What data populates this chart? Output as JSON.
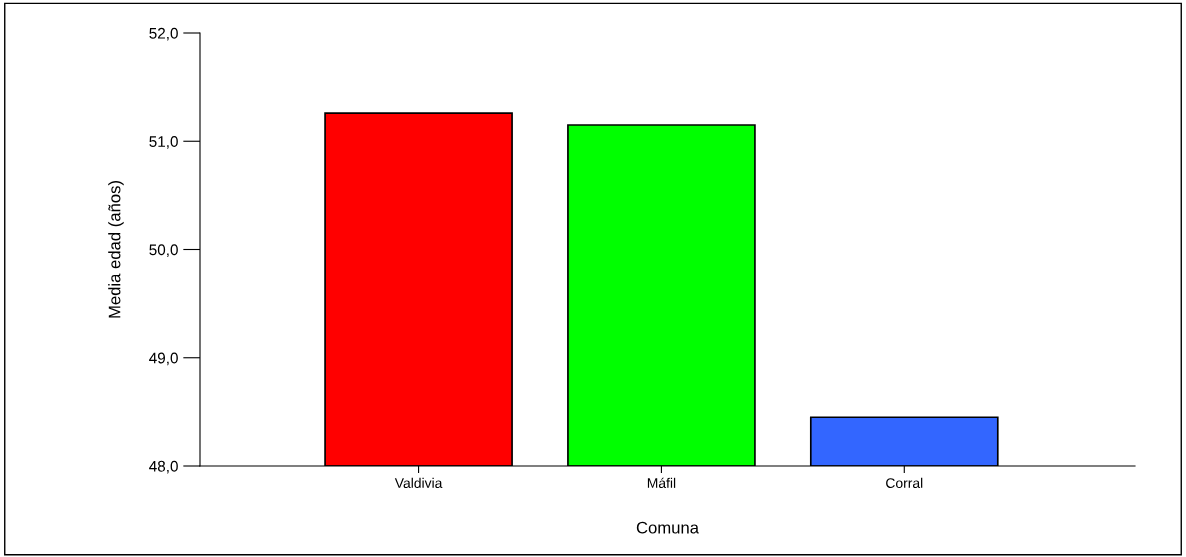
{
  "chart_data": {
    "type": "bar",
    "xlabel": "Comuna",
    "ylabel": "Media edad (años)",
    "categories": [
      "Valdivia",
      "Máfil",
      "Corral"
    ],
    "values": [
      51.26,
      51.15,
      48.45
    ],
    "colors": [
      "#ff0000",
      "#00ff00",
      "#3366ff"
    ],
    "ylim": [
      48,
      52
    ],
    "yticks": [
      {
        "value": 48,
        "label": "48,0"
      },
      {
        "value": 49,
        "label": "49,0"
      },
      {
        "value": 50,
        "label": "50,0"
      },
      {
        "value": 51,
        "label": "51,0"
      },
      {
        "value": 52,
        "label": "52,0"
      }
    ],
    "grid": false
  }
}
